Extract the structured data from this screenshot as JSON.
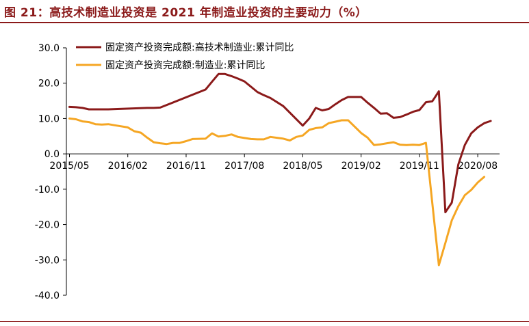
{
  "figure": {
    "title": "图 21：高技术制造业投资是 2021 年制造业投资的主要动力（%）"
  },
  "colors": {
    "accent": "#8b1a1a",
    "series1": "#8b1a1a",
    "series2": "#f5a623",
    "axis": "#000000"
  },
  "chart_data": {
    "type": "line",
    "title": "",
    "xlabel": "",
    "ylabel": "",
    "ylim": [
      -40,
      30
    ],
    "yticks": [
      "30.0",
      "20.0",
      "10.0",
      "0.0",
      "-10.0",
      "-20.0",
      "-30.0",
      "-40.0"
    ],
    "ytick_values": [
      30,
      20,
      10,
      0,
      -10,
      -20,
      -30,
      -40
    ],
    "xtick_labels": [
      "2015/05",
      "2016/02",
      "2016/11",
      "2017/08",
      "2018/05",
      "2019/02",
      "2019/11",
      "2020/08"
    ],
    "xrange": [
      "2015/05",
      "2020/10"
    ],
    "grid": false,
    "legend_placement": "top-left",
    "series": [
      {
        "name": "固定资产投资完成额:高技术制造业:累计同比",
        "color": "#8b1a1a",
        "points": [
          [
            "2015/05",
            13.3
          ],
          [
            "2015/06",
            13.2
          ],
          [
            "2015/07",
            13.0
          ],
          [
            "2015/08",
            12.6
          ],
          [
            "2015/09",
            12.6
          ],
          [
            "2015/10",
            12.6
          ],
          [
            "2015/11",
            12.6
          ],
          [
            "2016/05",
            13.0
          ],
          [
            "2016/06",
            13.0
          ],
          [
            "2016/07",
            13.1
          ],
          [
            "2017/02",
            18.2
          ],
          [
            "2017/03",
            20.4
          ],
          [
            "2017/04",
            22.6
          ],
          [
            "2017/05",
            22.6
          ],
          [
            "2017/06",
            22.0
          ],
          [
            "2017/07",
            21.3
          ],
          [
            "2017/08",
            20.5
          ],
          [
            "2017/09",
            19.0
          ],
          [
            "2017/10",
            17.5
          ],
          [
            "2017/11",
            16.6
          ],
          [
            "2017/12",
            15.8
          ],
          [
            "2018/02",
            13.5
          ],
          [
            "2018/05",
            8.0
          ],
          [
            "2018/06",
            10.0
          ],
          [
            "2018/07",
            13.0
          ],
          [
            "2018/08",
            12.3
          ],
          [
            "2018/09",
            12.7
          ],
          [
            "2018/10",
            14.0
          ],
          [
            "2018/11",
            15.2
          ],
          [
            "2018/12",
            16.1
          ],
          [
            "2019/02",
            16.1
          ],
          [
            "2019/03",
            14.5
          ],
          [
            "2019/04",
            13.0
          ],
          [
            "2019/05",
            11.4
          ],
          [
            "2019/06",
            11.5
          ],
          [
            "2019/07",
            10.2
          ],
          [
            "2019/08",
            10.4
          ],
          [
            "2019/09",
            11.1
          ],
          [
            "2019/10",
            11.9
          ],
          [
            "2019/11",
            12.4
          ],
          [
            "2019/12",
            14.6
          ],
          [
            "2020/01",
            14.9
          ],
          [
            "2020/02",
            17.7
          ],
          [
            "2020/03",
            -16.5
          ],
          [
            "2020/04",
            -13.8
          ],
          [
            "2020/05",
            -3.0
          ],
          [
            "2020/06",
            2.5
          ],
          [
            "2020/07",
            5.8
          ],
          [
            "2020/08",
            7.5
          ],
          [
            "2020/09",
            8.7
          ],
          [
            "2020/10",
            9.3
          ]
        ]
      },
      {
        "name": "固定资产投资完成额:制造业:累计同比",
        "color": "#f5a623",
        "points": [
          [
            "2015/05",
            10.0
          ],
          [
            "2015/06",
            9.8
          ],
          [
            "2015/07",
            9.2
          ],
          [
            "2015/08",
            9.0
          ],
          [
            "2015/09",
            8.4
          ],
          [
            "2015/10",
            8.3
          ],
          [
            "2015/11",
            8.4
          ],
          [
            "2015/12",
            8.1
          ],
          [
            "2016/02",
            7.5
          ],
          [
            "2016/03",
            6.4
          ],
          [
            "2016/04",
            6.0
          ],
          [
            "2016/05",
            4.6
          ],
          [
            "2016/06",
            3.3
          ],
          [
            "2016/07",
            3.0
          ],
          [
            "2016/08",
            2.8
          ],
          [
            "2016/09",
            3.1
          ],
          [
            "2016/10",
            3.1
          ],
          [
            "2016/11",
            3.6
          ],
          [
            "2016/12",
            4.2
          ],
          [
            "2017/02",
            4.3
          ],
          [
            "2017/03",
            5.8
          ],
          [
            "2017/04",
            4.9
          ],
          [
            "2017/05",
            5.1
          ],
          [
            "2017/06",
            5.5
          ],
          [
            "2017/07",
            4.8
          ],
          [
            "2017/08",
            4.5
          ],
          [
            "2017/09",
            4.2
          ],
          [
            "2017/10",
            4.1
          ],
          [
            "2017/11",
            4.1
          ],
          [
            "2017/12",
            4.8
          ],
          [
            "2018/02",
            4.3
          ],
          [
            "2018/03",
            3.8
          ],
          [
            "2018/04",
            4.8
          ],
          [
            "2018/05",
            5.2
          ],
          [
            "2018/06",
            6.8
          ],
          [
            "2018/07",
            7.3
          ],
          [
            "2018/08",
            7.5
          ],
          [
            "2018/09",
            8.7
          ],
          [
            "2018/10",
            9.1
          ],
          [
            "2018/11",
            9.5
          ],
          [
            "2018/12",
            9.5
          ],
          [
            "2019/02",
            5.9
          ],
          [
            "2019/03",
            4.6
          ],
          [
            "2019/04",
            2.5
          ],
          [
            "2019/05",
            2.7
          ],
          [
            "2019/06",
            3.0
          ],
          [
            "2019/07",
            3.3
          ],
          [
            "2019/08",
            2.6
          ],
          [
            "2019/09",
            2.5
          ],
          [
            "2019/10",
            2.6
          ],
          [
            "2019/11",
            2.5
          ],
          [
            "2019/12",
            3.1
          ],
          [
            "2020/02",
            -31.5
          ],
          [
            "2020/03",
            -25.2
          ],
          [
            "2020/04",
            -18.8
          ],
          [
            "2020/05",
            -14.8
          ],
          [
            "2020/06",
            -11.7
          ],
          [
            "2020/07",
            -10.2
          ],
          [
            "2020/08",
            -8.1
          ],
          [
            "2020/09",
            -6.5
          ]
        ]
      }
    ]
  }
}
